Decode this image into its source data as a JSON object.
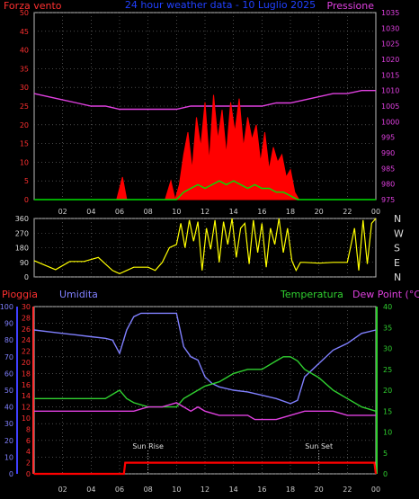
{
  "header": {
    "left": "Forza vento",
    "center": "24 hour weather data - 10 Luglio 2025",
    "right": "Pressione"
  },
  "bottom_header": {
    "rain": "Pioggia",
    "humidity": "Umidita",
    "temperature": "Temperatura",
    "dew": "Dew Point (°C)"
  },
  "annotations": {
    "sunrise": "Sun Rise",
    "sunset": "Sun Set"
  },
  "x_ticks": [
    "02",
    "04",
    "06",
    "08",
    "10",
    "12",
    "14",
    "16",
    "18",
    "20",
    "22",
    "00"
  ],
  "colors": {
    "pressure": "#e040e0",
    "wind": "#ff0000",
    "wind_gust": "#00e000",
    "direction": "#ffff00",
    "humidity": "#8080ff",
    "temperature": "#30d030",
    "dew": "#e040e0",
    "rain": "#ff0000",
    "grid": "#777777"
  },
  "chart_data": [
    {
      "type": "line",
      "name": "top",
      "yleft": {
        "label": "Forza vento",
        "ticks": [
          0,
          5,
          10,
          15,
          20,
          25,
          30,
          35,
          40,
          45,
          50
        ],
        "lim": [
          0,
          50
        ]
      },
      "yright": {
        "label": "Pressione",
        "ticks": [
          975,
          980,
          985,
          990,
          995,
          1000,
          1005,
          1010,
          1015,
          1020,
          1025,
          1030,
          1035
        ],
        "lim": [
          975,
          1035
        ]
      },
      "series": [
        {
          "role": "pressure",
          "axis": "right",
          "x": [
            0,
            1,
            2,
            3,
            4,
            5,
            6,
            7,
            8,
            9,
            10,
            11,
            12,
            13,
            14,
            15,
            16,
            17,
            18,
            19,
            20,
            21,
            22,
            23,
            24
          ],
          "y": [
            1009,
            1008,
            1007,
            1006,
            1005,
            1005,
            1004,
            1004,
            1004,
            1004,
            1004,
            1005,
            1005,
            1005,
            1005,
            1005,
            1005,
            1006,
            1006,
            1007,
            1008,
            1009,
            1009,
            1010,
            1010
          ]
        },
        {
          "role": "wind",
          "axis": "left",
          "x": [
            0,
            5.8,
            6.2,
            6.5,
            9.2,
            9.6,
            9.9,
            10.2,
            10.5,
            10.8,
            11.1,
            11.4,
            11.7,
            12.0,
            12.3,
            12.6,
            12.9,
            13.2,
            13.5,
            13.8,
            14.1,
            14.4,
            14.7,
            15.0,
            15.3,
            15.6,
            15.9,
            16.2,
            16.5,
            16.8,
            17.1,
            17.4,
            17.7,
            18.0,
            18.3,
            18.6,
            24
          ],
          "y": [
            0,
            0,
            6,
            0,
            0,
            5,
            0,
            4,
            12,
            18,
            8,
            22,
            14,
            26,
            10,
            28,
            16,
            24,
            12,
            26,
            18,
            27,
            14,
            22,
            16,
            20,
            10,
            18,
            8,
            14,
            10,
            12,
            6,
            8,
            2,
            0,
            0
          ]
        },
        {
          "role": "wind_gust",
          "axis": "left",
          "x": [
            0,
            10.0,
            10.5,
            11.0,
            11.5,
            12.0,
            12.5,
            13.0,
            13.5,
            14.0,
            14.5,
            15.0,
            15.5,
            16.0,
            16.5,
            17.0,
            17.5,
            18.0,
            18.5,
            24
          ],
          "y": [
            0,
            0,
            2,
            3,
            4,
            3,
            4,
            5,
            4,
            5,
            4,
            3,
            4,
            3,
            3,
            2,
            2,
            1,
            0,
            0
          ]
        }
      ]
    },
    {
      "type": "line",
      "name": "direction",
      "yleft": {
        "ticks": [
          0,
          90,
          180,
          270,
          360
        ],
        "lim": [
          0,
          360
        ]
      },
      "yright_labels": [
        "N",
        "W",
        "S",
        "E",
        "N"
      ],
      "series": [
        {
          "role": "direction",
          "x": [
            0,
            1.5,
            2.5,
            3.5,
            4.5,
            5.0,
            5.5,
            6.0,
            6.5,
            7.0,
            7.5,
            8.0,
            8.5,
            9.0,
            9.5,
            10.0,
            10.3,
            10.6,
            10.9,
            11.2,
            11.5,
            11.8,
            12.1,
            12.4,
            12.7,
            13.0,
            13.3,
            13.6,
            13.9,
            14.2,
            14.5,
            14.8,
            15.1,
            15.4,
            15.7,
            16.0,
            16.3,
            16.6,
            16.9,
            17.2,
            17.5,
            17.8,
            18.1,
            18.4,
            18.7,
            19.0,
            20.0,
            21.0,
            22.0,
            22.5,
            22.8,
            23.1,
            23.4,
            23.7,
            24
          ],
          "y": [
            100,
            45,
            95,
            95,
            120,
            80,
            40,
            20,
            40,
            60,
            60,
            60,
            40,
            90,
            180,
            200,
            330,
            180,
            350,
            220,
            340,
            40,
            300,
            170,
            350,
            90,
            340,
            200,
            360,
            120,
            300,
            330,
            80,
            350,
            150,
            330,
            60,
            300,
            200,
            360,
            150,
            300,
            100,
            40,
            90,
            90,
            85,
            90,
            90,
            300,
            40,
            350,
            80,
            330,
            360
          ]
        }
      ]
    },
    {
      "type": "line",
      "name": "bottom",
      "yleft_humidity": {
        "label": "Umidita",
        "ticks": [
          0,
          10,
          20,
          30,
          40,
          50,
          60,
          70,
          80,
          90,
          100
        ],
        "lim": [
          0,
          100
        ]
      },
      "yleft_rain": {
        "label": "Pioggia",
        "ticks": [
          0,
          2,
          4,
          6,
          8,
          10,
          12,
          14,
          16,
          18,
          20,
          22,
          24,
          26,
          28,
          30
        ],
        "lim": [
          0,
          30
        ]
      },
      "yright": {
        "label": "Dew Point (°C)",
        "ticks": [
          0,
          5,
          10,
          15,
          20,
          25,
          30,
          35,
          40
        ],
        "lim": [
          0,
          40
        ]
      },
      "series": [
        {
          "role": "humidity",
          "axis": "humidity",
          "x": [
            0,
            1,
            2,
            3,
            4,
            5,
            5.5,
            6.0,
            6.5,
            7.0,
            7.5,
            8.0,
            9.0,
            10.0,
            10.5,
            11.0,
            11.5,
            12.0,
            12.5,
            13.0,
            14.0,
            15.0,
            16.0,
            17.0,
            18.0,
            18.5,
            19.0,
            19.5,
            20.0,
            21.0,
            22.0,
            23.0,
            24
          ],
          "y": [
            86,
            85,
            84,
            83,
            82,
            81,
            80,
            72,
            86,
            94,
            96,
            96,
            96,
            96,
            76,
            70,
            68,
            58,
            54,
            52,
            50,
            49,
            47,
            45,
            42,
            44,
            58,
            62,
            66,
            74,
            78,
            84,
            86
          ]
        },
        {
          "role": "temperature",
          "axis": "right",
          "x": [
            0,
            1,
            2,
            3,
            4,
            5,
            5.5,
            6.0,
            6.5,
            7.0,
            8.0,
            9.0,
            10.0,
            10.5,
            11.0,
            11.5,
            12.0,
            13.0,
            14.0,
            15.0,
            16.0,
            17.0,
            17.5,
            18.0,
            18.5,
            19.0,
            20.0,
            21.0,
            22.0,
            23.0,
            24
          ],
          "y": [
            18,
            18,
            18,
            18,
            18,
            18,
            19,
            20,
            18,
            17,
            16,
            16,
            16,
            18,
            19,
            20,
            21,
            22,
            24,
            25,
            25,
            27,
            28,
            28,
            27,
            25,
            23,
            20,
            18,
            16,
            15
          ]
        },
        {
          "role": "dew",
          "axis": "right",
          "x": [
            0,
            2,
            4,
            5,
            6,
            7,
            8,
            9,
            10,
            10.5,
            11,
            11.5,
            12,
            13,
            14,
            15,
            15.5,
            16,
            17,
            18,
            19,
            20,
            21,
            22,
            23,
            24
          ],
          "y": [
            15,
            15,
            15,
            15,
            15,
            15,
            16,
            16,
            17,
            16,
            15,
            16,
            15,
            14,
            14,
            14,
            13,
            13,
            13,
            14,
            15,
            15,
            15,
            14,
            14,
            14
          ]
        },
        {
          "role": "rain",
          "axis": "rain",
          "x": [
            0,
            6.3,
            6.4,
            23.9,
            24
          ],
          "y": [
            0,
            0,
            2,
            2,
            0
          ]
        }
      ],
      "markers": [
        {
          "label": "Sun Rise",
          "x": 8
        },
        {
          "label": "Sun Set",
          "x": 20
        }
      ]
    }
  ]
}
